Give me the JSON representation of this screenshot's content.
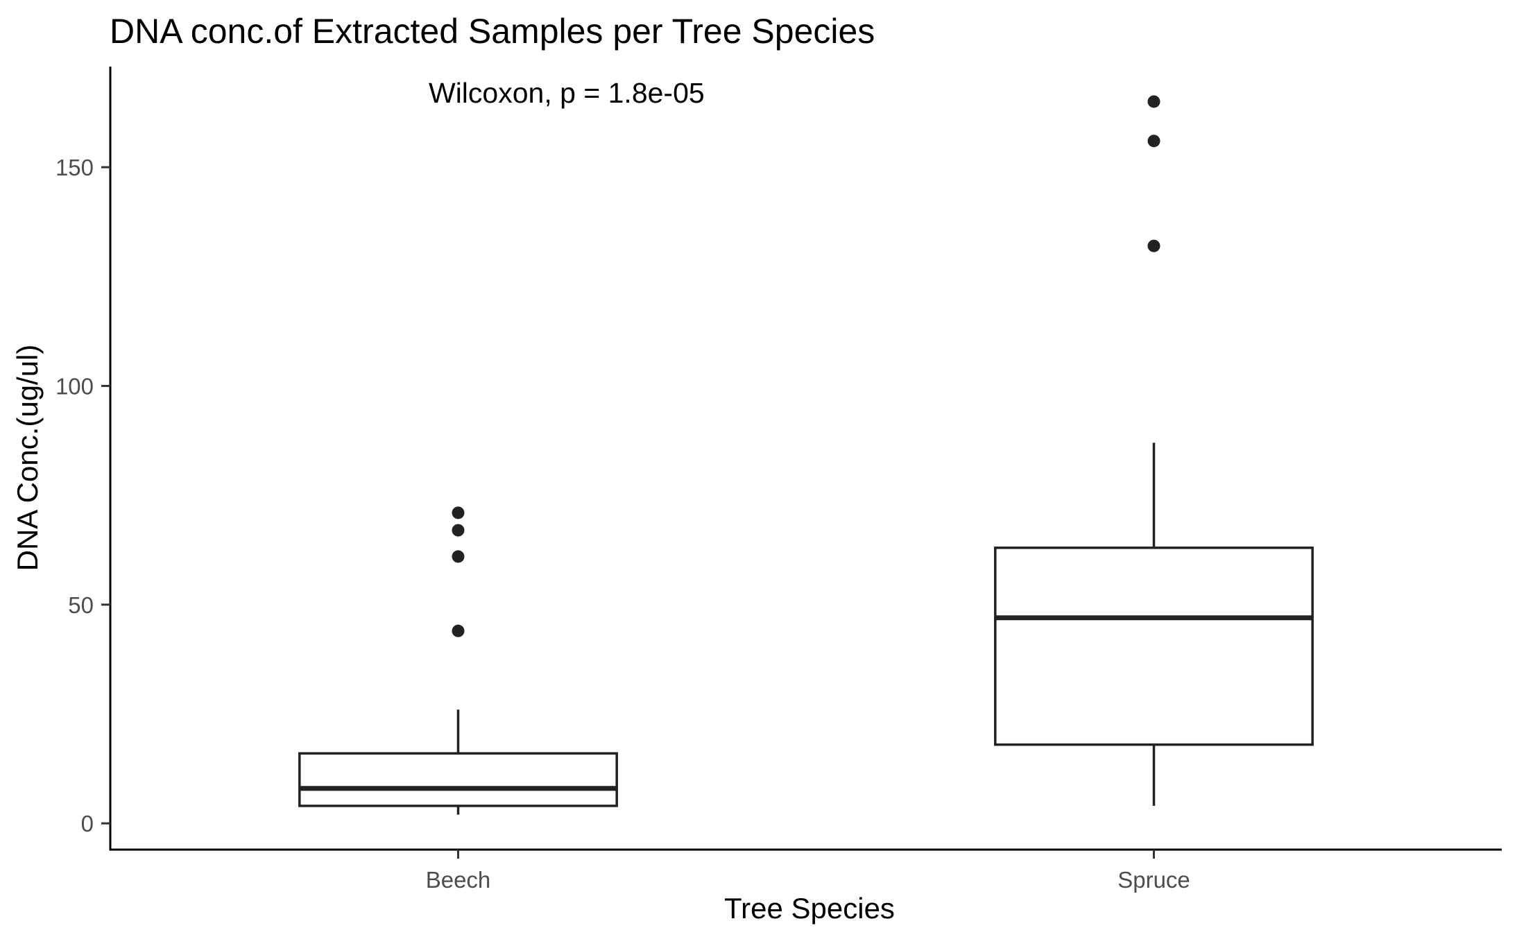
{
  "chart_data": {
    "type": "boxplot",
    "title": "DNA conc.of Extracted Samples per Tree Species",
    "annotation": "Wilcoxon, p = 1.8e-05",
    "xlabel": "Tree Species",
    "ylabel": "DNA Conc.(ug/ul)",
    "ylim": [
      -6,
      173
    ],
    "yticks": [
      0,
      50,
      100,
      150
    ],
    "grid": false,
    "categories": [
      "Beech",
      "Spruce"
    ],
    "boxes": [
      {
        "category": "Beech",
        "whisker_low": 2,
        "q1": 4,
        "median": 8,
        "q3": 16,
        "whisker_high": 26,
        "outliers": [
          44,
          61,
          67,
          71
        ]
      },
      {
        "category": "Spruce",
        "whisker_low": 4,
        "q1": 18,
        "median": 47,
        "q3": 63,
        "whisker_high": 87,
        "outliers": [
          132,
          156,
          165
        ]
      }
    ]
  }
}
